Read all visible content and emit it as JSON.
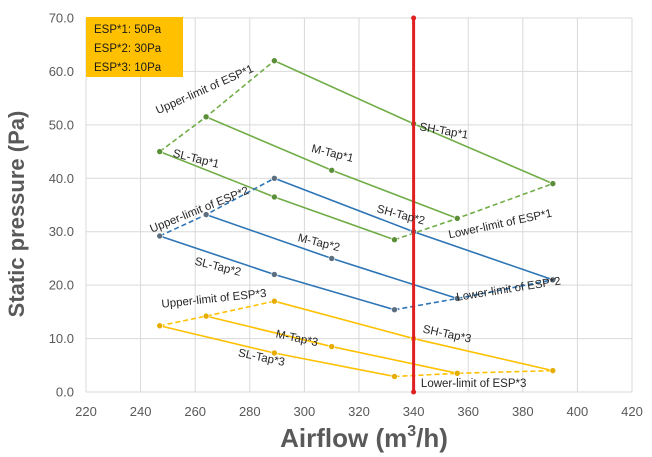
{
  "chart_data": {
    "type": "line",
    "xlabel": "Airflow (m",
    "xlabel_sup": "3",
    "xlabel_tail": "/h)",
    "ylabel": "Static pressure (Pa)",
    "xlim": [
      220,
      420
    ],
    "ylim": [
      0,
      70
    ],
    "xticks": [
      "220",
      "240",
      "260",
      "280",
      "300",
      "320",
      "340",
      "360",
      "380",
      "400",
      "420"
    ],
    "yticks": [
      "0.0",
      "10.0",
      "20.0",
      "30.0",
      "40.0",
      "50.0",
      "60.0",
      "70.0"
    ],
    "grid": true,
    "legend_box": {
      "lines": [
        "ESP*1:  50Pa",
        "ESP*2:  30Pa",
        "ESP*3:  10Pa"
      ],
      "color": "#FFC000"
    },
    "vertical_marker": {
      "x": 340,
      "color": "#E02020"
    },
    "series": [
      {
        "color": "#70AD47",
        "dashed": false,
        "x": [
          289,
          340,
          391
        ],
        "y": [
          62,
          50.2,
          39
        ]
      },
      {
        "color": "#70AD47",
        "dashed": false,
        "x": [
          264,
          310,
          356
        ],
        "y": [
          51.5,
          41.5,
          32.5
        ]
      },
      {
        "color": "#70AD47",
        "dashed": false,
        "x": [
          247,
          289,
          333
        ],
        "y": [
          45,
          36.5,
          28.5
        ]
      },
      {
        "color": "#70AD47",
        "dashed": true,
        "x": [
          247,
          264,
          289
        ],
        "y": [
          45,
          51.5,
          62
        ]
      },
      {
        "color": "#70AD47",
        "dashed": true,
        "x": [
          333,
          356,
          391
        ],
        "y": [
          28.5,
          32.5,
          39
        ]
      },
      {
        "color": "#2E75B6",
        "dashed": false,
        "x": [
          289,
          340,
          391
        ],
        "y": [
          40,
          30,
          21
        ]
      },
      {
        "color": "#2E75B6",
        "dashed": false,
        "x": [
          264,
          310,
          356
        ],
        "y": [
          33.2,
          25,
          17.5
        ]
      },
      {
        "color": "#2E75B6",
        "dashed": false,
        "x": [
          247,
          289,
          333
        ],
        "y": [
          29.2,
          22,
          15.4
        ]
      },
      {
        "color": "#2E75B6",
        "dashed": true,
        "x": [
          247,
          264,
          289
        ],
        "y": [
          29.2,
          33.2,
          40
        ]
      },
      {
        "color": "#2E75B6",
        "dashed": true,
        "x": [
          333,
          356,
          391
        ],
        "y": [
          15.4,
          17.5,
          21
        ]
      },
      {
        "color": "#FFC000",
        "dashed": false,
        "x": [
          289,
          340,
          391
        ],
        "y": [
          17,
          10,
          4
        ]
      },
      {
        "color": "#FFC000",
        "dashed": false,
        "x": [
          264,
          310,
          356
        ],
        "y": [
          14.2,
          8.5,
          3.5
        ]
      },
      {
        "color": "#FFC000",
        "dashed": false,
        "x": [
          247,
          289,
          333
        ],
        "y": [
          12.4,
          7.3,
          2.9
        ]
      },
      {
        "color": "#FFC000",
        "dashed": true,
        "x": [
          247,
          264,
          289
        ],
        "y": [
          12.4,
          14.2,
          17
        ]
      },
      {
        "color": "#FFC000",
        "dashed": true,
        "x": [
          333,
          356,
          391
        ],
        "y": [
          2.9,
          3.5,
          4
        ]
      }
    ],
    "annotations": [
      {
        "text": "Upper-limit of ESP*1",
        "x": 264,
        "y": 56,
        "rotate": -24,
        "anchor": "middle"
      },
      {
        "text": "SH-Tap*1",
        "x": 342,
        "y": 49,
        "rotate": 10,
        "anchor": "start"
      },
      {
        "text": "M-Tap*1",
        "x": 310,
        "y": 44,
        "rotate": 14,
        "anchor": "middle"
      },
      {
        "text": "SL-Tap*1",
        "x": 260,
        "y": 43,
        "rotate": 14,
        "anchor": "middle"
      },
      {
        "text": "SH-Tap*2",
        "x": 335,
        "y": 32.5,
        "rotate": 15,
        "anchor": "middle"
      },
      {
        "text": "Lower-limit of ESP*1",
        "x": 372,
        "y": 30.8,
        "rotate": -12,
        "anchor": "middle"
      },
      {
        "text": "Upper-limit of ESP*2",
        "x": 262,
        "y": 33.5,
        "rotate": -22,
        "anchor": "middle"
      },
      {
        "text": "M-Tap*2",
        "x": 305,
        "y": 27.3,
        "rotate": 14,
        "anchor": "middle"
      },
      {
        "text": "SL-Tap*2",
        "x": 268,
        "y": 22.8,
        "rotate": 14,
        "anchor": "middle"
      },
      {
        "text": "Lower-limit of ESP*2",
        "x": 375,
        "y": 18.6,
        "rotate": -9,
        "anchor": "middle"
      },
      {
        "text": "Upper-limit of ESP*3",
        "x": 267,
        "y": 16.8,
        "rotate": -6,
        "anchor": "middle"
      },
      {
        "text": "SH-Tap*3",
        "x": 352,
        "y": 10.2,
        "rotate": 12,
        "anchor": "middle"
      },
      {
        "text": "M-Tap*3",
        "x": 297,
        "y": 9.4,
        "rotate": 12,
        "anchor": "middle"
      },
      {
        "text": "SL-Tap*3",
        "x": 284,
        "y": 5.8,
        "rotate": 12,
        "anchor": "middle"
      },
      {
        "text": "Lower-limit of ESP*3",
        "x": 362,
        "y": 0.9,
        "rotate": 0,
        "anchor": "middle"
      }
    ]
  }
}
